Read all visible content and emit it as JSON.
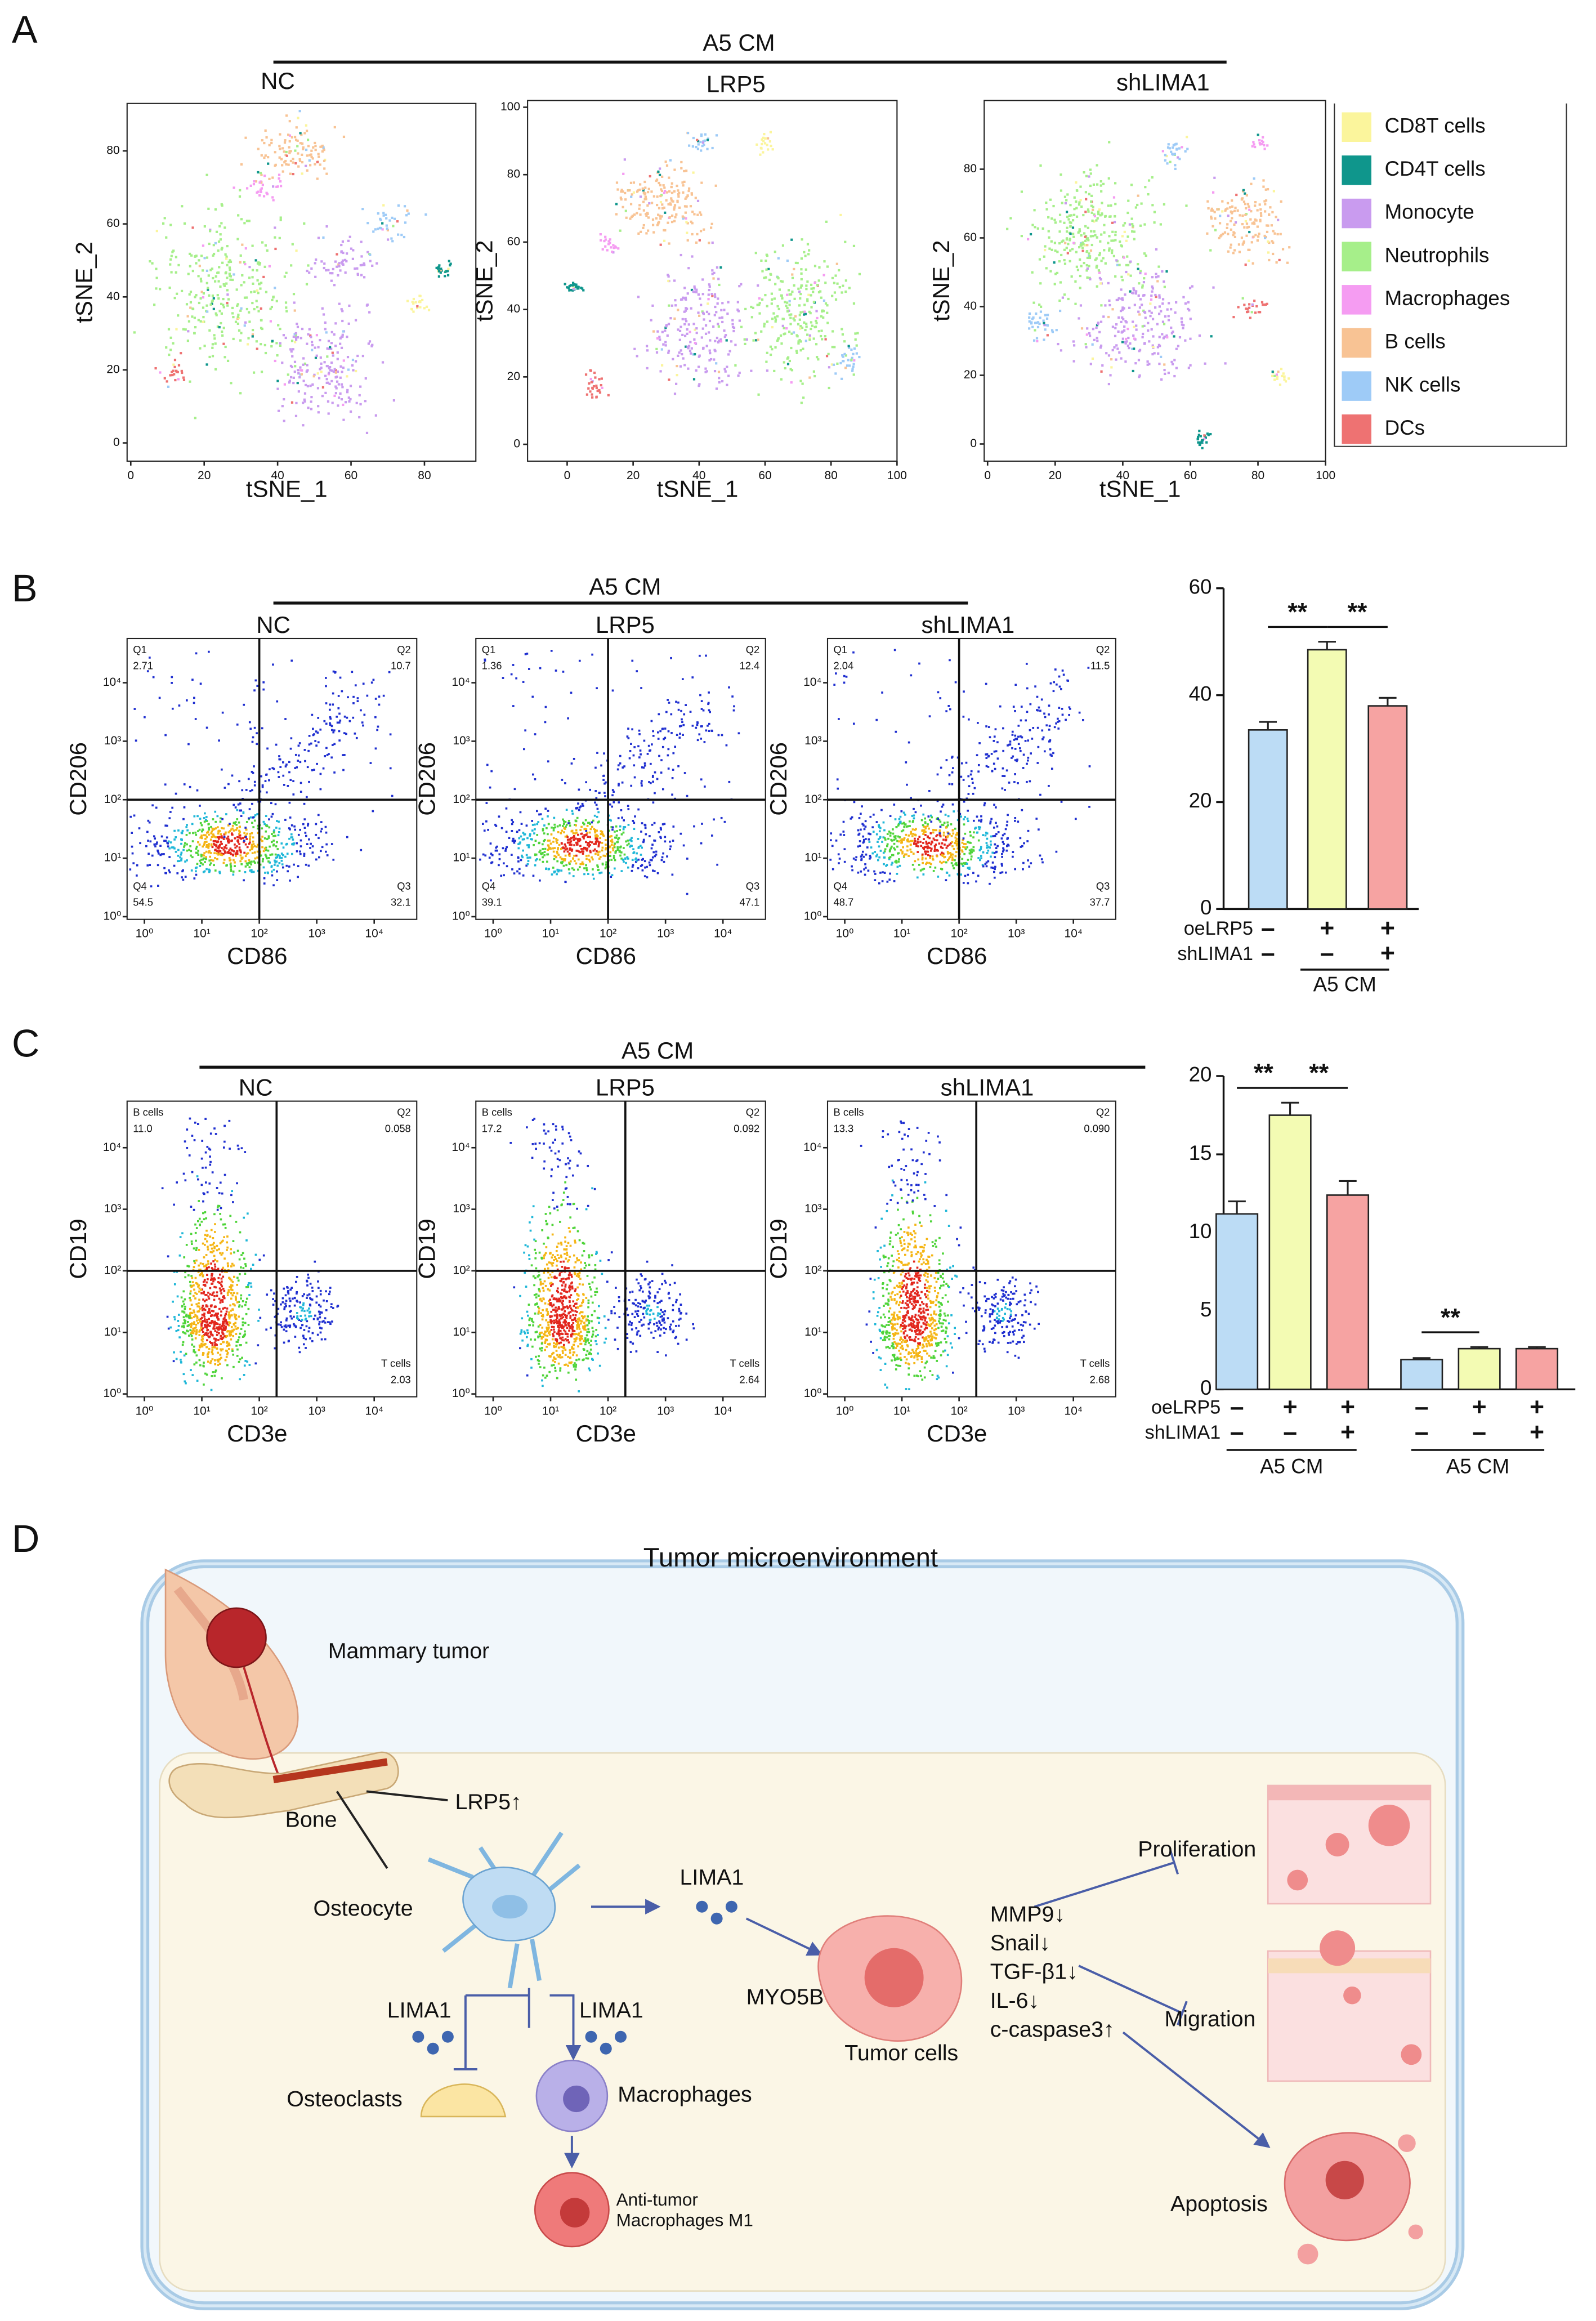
{
  "panel_labels": [
    "A",
    "B",
    "C",
    "D"
  ],
  "tsne": {
    "group_label": "A5 CM",
    "x_label": "tSNE_1",
    "y_label": "tSNE_2",
    "plots": [
      {
        "title": "NC",
        "xlim": [
          -1,
          94
        ],
        "ylim": [
          -5,
          93
        ],
        "xticks": [
          0,
          20,
          40,
          60,
          80
        ],
        "yticks": [
          0,
          20,
          40,
          60,
          80
        ]
      },
      {
        "title": "LRP5",
        "xlim": [
          -12,
          100
        ],
        "ylim": [
          -5,
          102
        ],
        "xticks": [
          0,
          20,
          40,
          60,
          80,
          100
        ],
        "yticks": [
          0,
          20,
          40,
          60,
          80,
          100
        ]
      },
      {
        "title": "shLIMA1",
        "xlim": [
          -1,
          100
        ],
        "ylim": [
          -5,
          100
        ],
        "xticks": [
          0,
          20,
          40,
          60,
          80,
          100
        ],
        "yticks": [
          0,
          20,
          40,
          60,
          80
        ]
      }
    ],
    "legend": [
      {
        "name": "CD8T cells",
        "color": "#fbf59c"
      },
      {
        "name": "CD4T cells",
        "color": "#0f968c"
      },
      {
        "name": "Monocyte",
        "color": "#c99bef"
      },
      {
        "name": "Neutrophils",
        "color": "#a6ef8a"
      },
      {
        "name": "Macrophages",
        "color": "#f59cf2"
      },
      {
        "name": "B cells",
        "color": "#f8c394"
      },
      {
        "name": "NK cells",
        "color": "#9ecbf7"
      },
      {
        "name": "DCs",
        "color": "#ee7272"
      }
    ]
  },
  "flow": [
    {
      "group_label": "A5 CM",
      "x_label": "CD86",
      "y_label": "CD206",
      "log": true,
      "xlim": [
        0.5,
        55000
      ],
      "ylim": [
        0.9,
        57000
      ],
      "gate": [
        100,
        100
      ],
      "xticks": [
        {
          "value": 1,
          "label": "10⁰"
        },
        {
          "value": 10,
          "label": "10¹"
        },
        {
          "value": 100,
          "label": "10²"
        },
        {
          "value": 1000,
          "label": "10³"
        },
        {
          "value": 10000,
          "label": "10⁴"
        }
      ],
      "yticks": [
        {
          "value": 1,
          "label": "10⁰"
        },
        {
          "value": 10,
          "label": "10¹"
        },
        {
          "value": 100,
          "label": "10²"
        },
        {
          "value": 1000,
          "label": "10³"
        },
        {
          "value": 10000,
          "label": "10⁴"
        }
      ],
      "plots": [
        {
          "title": "NC",
          "quadrants": {
            "tl": {
              "name": "Q1",
              "value": "2.71"
            },
            "tr": {
              "name": "Q2",
              "value": "10.7"
            },
            "br": {
              "name": "Q3",
              "value": "32.1"
            },
            "bl": {
              "name": "Q4",
              "value": "54.5"
            }
          }
        },
        {
          "title": "LRP5",
          "quadrants": {
            "tl": {
              "name": "Q1",
              "value": "1.36"
            },
            "tr": {
              "name": "Q2",
              "value": "12.4"
            },
            "br": {
              "name": "Q3",
              "value": "47.1"
            },
            "bl": {
              "name": "Q4",
              "value": "39.1"
            }
          }
        },
        {
          "title": "shLIMA1",
          "quadrants": {
            "tl": {
              "name": "Q1",
              "value": "2.04"
            },
            "tr": {
              "name": "Q2",
              "value": "11.5"
            },
            "br": {
              "name": "Q3",
              "value": "37.7"
            },
            "bl": {
              "name": "Q4",
              "value": "48.7"
            }
          }
        }
      ]
    },
    {
      "group_label": "A5 CM",
      "x_label": "CD3e",
      "y_label": "CD19",
      "log": true,
      "xlim": [
        0.5,
        55000
      ],
      "ylim": [
        0.9,
        57000
      ],
      "gate": [
        200,
        100
      ],
      "xticks": [
        {
          "value": 1,
          "label": "10⁰"
        },
        {
          "value": 10,
          "label": "10¹"
        },
        {
          "value": 100,
          "label": "10²"
        },
        {
          "value": 1000,
          "label": "10³"
        },
        {
          "value": 10000,
          "label": "10⁴"
        }
      ],
      "yticks": [
        {
          "value": 1,
          "label": "10⁰"
        },
        {
          "value": 10,
          "label": "10¹"
        },
        {
          "value": 100,
          "label": "10²"
        },
        {
          "value": 1000,
          "label": "10³"
        },
        {
          "value": 10000,
          "label": "10⁴"
        }
      ],
      "plots": [
        {
          "title": "NC",
          "quadrants": {
            "tl": {
              "name": "B cells",
              "value": "11.0"
            },
            "tr": {
              "name": "Q2",
              "value": "0.058"
            },
            "br": {
              "name": "T cells",
              "value": "2.03"
            }
          }
        },
        {
          "title": "LRP5",
          "quadrants": {
            "tl": {
              "name": "B cells",
              "value": "17.2"
            },
            "tr": {
              "name": "Q2",
              "value": "0.092"
            },
            "br": {
              "name": "T cells",
              "value": "2.64"
            }
          }
        },
        {
          "title": "shLIMA1",
          "quadrants": {
            "tl": {
              "name": "B cells",
              "value": "13.3"
            },
            "tr": {
              "name": "Q2",
              "value": "0.090"
            },
            "br": {
              "name": "T cells",
              "value": "2.68"
            }
          }
        }
      ]
    }
  ],
  "chart_data": [
    {
      "type": "bar",
      "ylim": [
        0,
        60
      ],
      "yticks": [
        0,
        20,
        40,
        60
      ],
      "row_labels": [
        "oeLRP5",
        "shLIMA1"
      ],
      "colors": [
        "#bcdcf5",
        "#f3fbb3",
        "#f6a3a2"
      ],
      "groups": [
        {
          "label": "A5 CM",
          "values": [
            33.5,
            48.5,
            38
          ],
          "errors": [
            1.5,
            1.5,
            1.5
          ],
          "signs": [
            [
              "–",
              "+",
              "+"
            ],
            [
              "–",
              "–",
              "+"
            ]
          ],
          "significance": [
            {
              "between": [
                0,
                1
              ],
              "label": "**"
            },
            {
              "between": [
                1,
                2
              ],
              "label": "**"
            }
          ]
        }
      ]
    },
    {
      "type": "bar",
      "ylim": [
        0,
        20
      ],
      "yticks": [
        0,
        5,
        10,
        15,
        20
      ],
      "row_labels": [
        "oeLRP5",
        "shLIMA1"
      ],
      "colors": [
        "#bcdcf5",
        "#f3fbb3",
        "#f6a3a2"
      ],
      "groups": [
        {
          "label": "A5 CM",
          "values": [
            11.2,
            17.5,
            12.4
          ],
          "errors": [
            0.8,
            0.8,
            0.9
          ],
          "signs": [
            [
              "–",
              "+",
              "+"
            ],
            [
              "–",
              "–",
              "+"
            ]
          ],
          "significance": [
            {
              "between": [
                0,
                1
              ],
              "label": "**"
            },
            {
              "between": [
                1,
                2
              ],
              "label": "**"
            }
          ]
        },
        {
          "label": "A5 CM",
          "values": [
            1.9,
            2.6,
            2.6
          ],
          "errors": [
            0.1,
            0.1,
            0.1
          ],
          "signs": [
            [
              "–",
              "+",
              "+"
            ],
            [
              "–",
              "–",
              "+"
            ]
          ],
          "significance": [
            {
              "between": [
                0,
                1
              ],
              "label": "**"
            }
          ]
        }
      ]
    }
  ],
  "diagram": {
    "title": "Tumor microenvironment",
    "mammary": "Mammary tumor",
    "bone": "Bone",
    "lrp5": "LRP5↑",
    "osteocyte": "Osteocyte",
    "lima1": [
      "LIMA1",
      "LIMA1",
      "LIMA1"
    ],
    "myo5b": "MYO5B",
    "tumor_cells": "Tumor cells",
    "markers": [
      "MMP9↓",
      "Snail↓",
      "TGF-β1↓",
      "IL-6↓",
      "c-caspase3↑"
    ],
    "proliferation": "Proliferation",
    "migration": "Migration",
    "apoptosis": "Apoptosis",
    "osteoclasts": "Osteoclasts",
    "macrophages": "Macrophages",
    "m1": [
      "Anti-tumor",
      "Macrophages M1"
    ]
  }
}
